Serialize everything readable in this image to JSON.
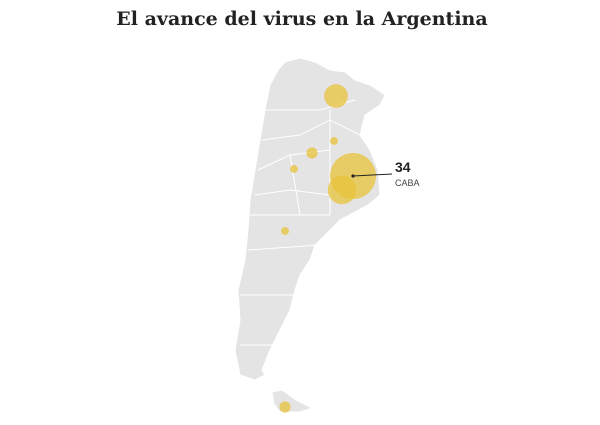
{
  "title": "El avance del virus en la Argentina",
  "highlight": {
    "value": 34,
    "label": "CABA"
  },
  "bubbles": [
    9,
    13,
    2,
    1,
    1,
    1,
    2
  ]
}
